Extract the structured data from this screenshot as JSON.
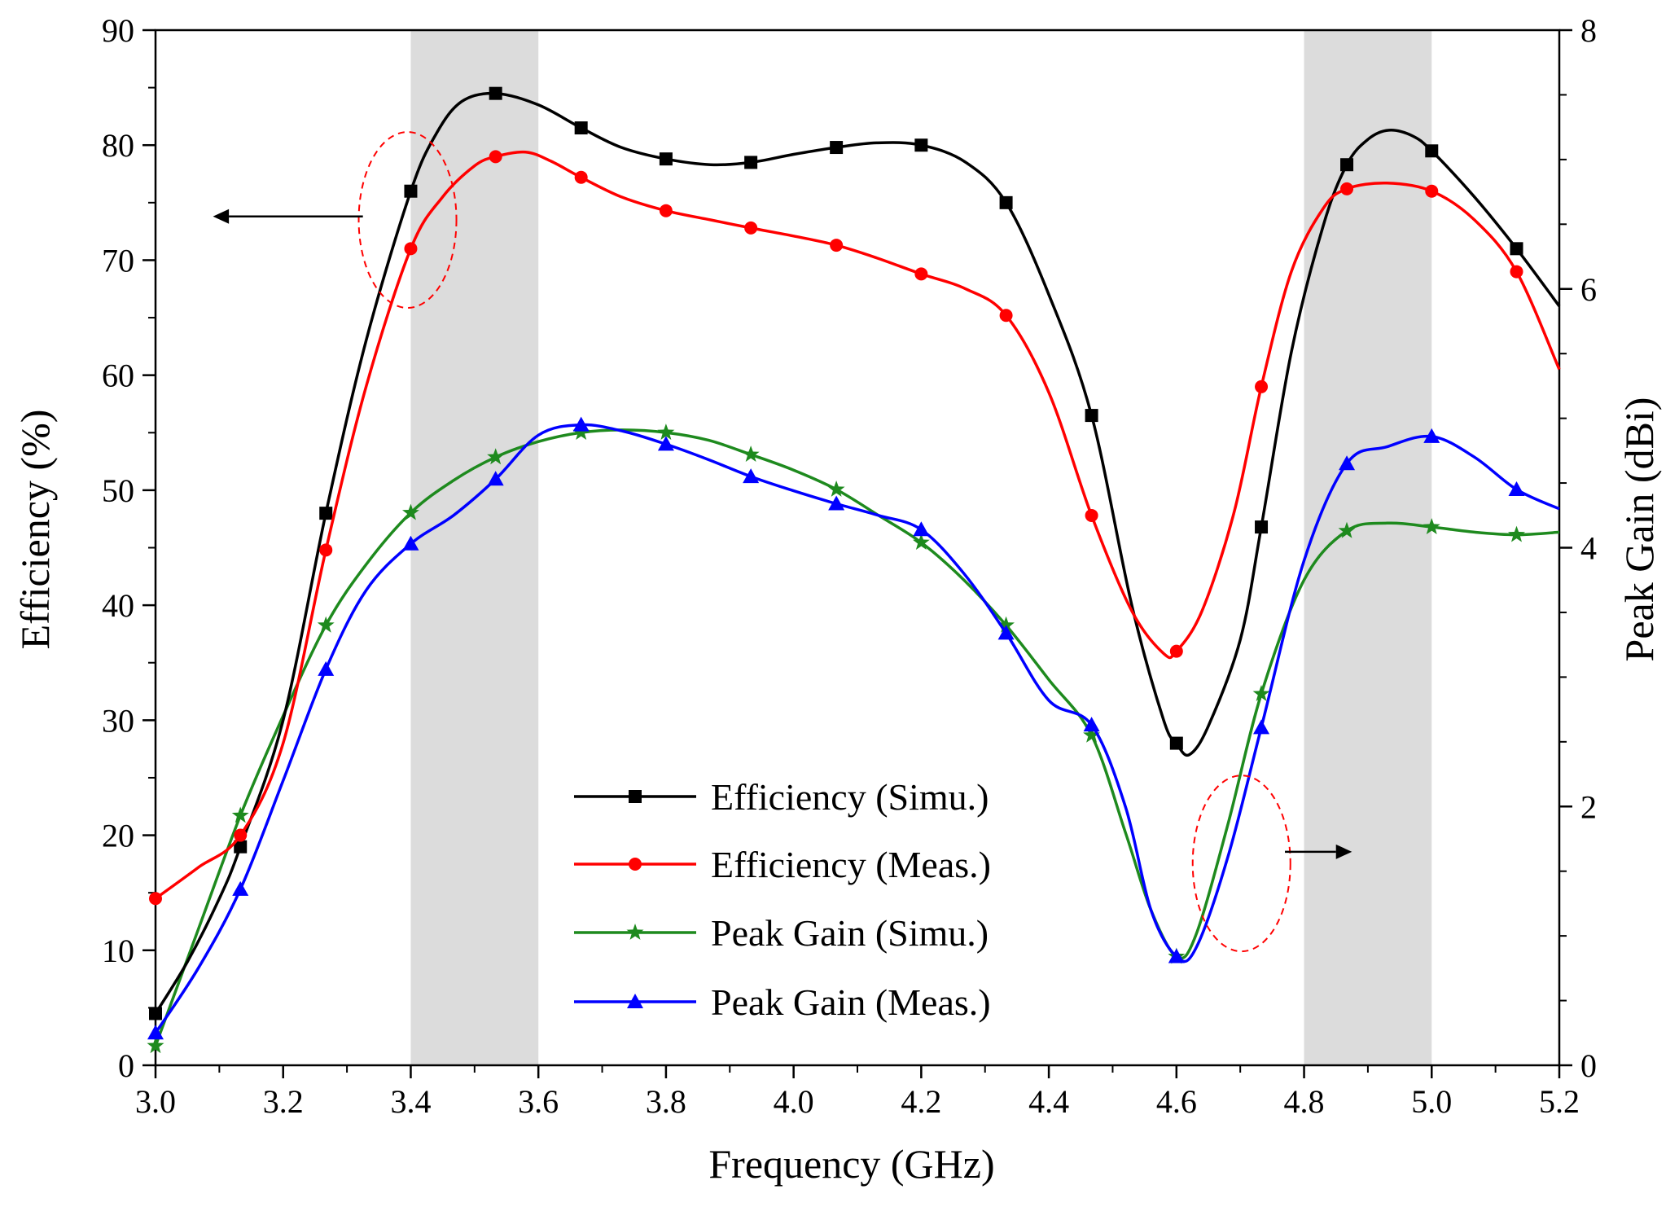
{
  "chart_data": {
    "type": "line",
    "xlabel": "Frequency (GHz)",
    "ylabel_left": "Efficiency (%)",
    "ylabel_right": "Peak Gain (dBi)",
    "xlim": [
      3.0,
      5.2
    ],
    "ylim_left": [
      0,
      90
    ],
    "ylim_right": [
      0,
      8
    ],
    "x_ticks": [
      "3.0",
      "3.2",
      "3.4",
      "3.6",
      "3.8",
      "4.0",
      "4.2",
      "4.4",
      "4.6",
      "4.8",
      "5.0",
      "5.2"
    ],
    "y_left_ticks": [
      "0",
      "10",
      "20",
      "30",
      "40",
      "50",
      "60",
      "70",
      "80",
      "90"
    ],
    "y_right_ticks": [
      "0",
      "2",
      "4",
      "6",
      "8"
    ],
    "grid": false,
    "legend_position": "lower-center",
    "shaded_bands": [
      [
        3.4,
        3.6
      ],
      [
        4.8,
        5.0
      ]
    ],
    "shade_color": "#dcdcdc",
    "series": [
      {
        "name": "Efficiency (Simu.)",
        "axis": "left",
        "color": "#000000",
        "marker": "square",
        "x": [
          3.0,
          3.133,
          3.267,
          3.4,
          3.533,
          3.667,
          3.8,
          3.933,
          4.067,
          4.2,
          4.333,
          4.467,
          4.6,
          4.733,
          4.867,
          5.0,
          5.133
        ],
        "y": [
          4.5,
          19,
          48,
          76,
          84.5,
          81.5,
          78.8,
          78.5,
          79.8,
          80,
          75,
          56.5,
          28,
          46.8,
          78.3,
          79.5,
          71
        ],
        "curve": [
          [
            3.0,
            4.5
          ],
          [
            3.05,
            9
          ],
          [
            3.1,
            14.5
          ],
          [
            3.133,
            19
          ],
          [
            3.2,
            30
          ],
          [
            3.267,
            48
          ],
          [
            3.33,
            63
          ],
          [
            3.4,
            76
          ],
          [
            3.44,
            81
          ],
          [
            3.48,
            83.8
          ],
          [
            3.533,
            84.5
          ],
          [
            3.6,
            83.5
          ],
          [
            3.667,
            81.5
          ],
          [
            3.73,
            79.8
          ],
          [
            3.8,
            78.8
          ],
          [
            3.87,
            78.3
          ],
          [
            3.933,
            78.5
          ],
          [
            4.0,
            79.2
          ],
          [
            4.067,
            79.8
          ],
          [
            4.13,
            80.2
          ],
          [
            4.2,
            80
          ],
          [
            4.27,
            78.5
          ],
          [
            4.333,
            75
          ],
          [
            4.4,
            67
          ],
          [
            4.467,
            56.5
          ],
          [
            4.53,
            40
          ],
          [
            4.58,
            30
          ],
          [
            4.6,
            28
          ],
          [
            4.62,
            27
          ],
          [
            4.65,
            29.5
          ],
          [
            4.7,
            37
          ],
          [
            4.733,
            46.8
          ],
          [
            4.78,
            62
          ],
          [
            4.83,
            73
          ],
          [
            4.867,
            78.3
          ],
          [
            4.9,
            80.5
          ],
          [
            4.933,
            81.3
          ],
          [
            4.97,
            80.8
          ],
          [
            5.0,
            79.5
          ],
          [
            5.067,
            75.5
          ],
          [
            5.133,
            71
          ],
          [
            5.2,
            66
          ]
        ]
      },
      {
        "name": "Efficiency (Meas.)",
        "axis": "left",
        "color": "#ff0000",
        "marker": "circle",
        "x": [
          3.0,
          3.133,
          3.267,
          3.4,
          3.533,
          3.667,
          3.8,
          3.933,
          4.067,
          4.2,
          4.333,
          4.467,
          4.6,
          4.733,
          4.867,
          5.0,
          5.133
        ],
        "y": [
          14.5,
          20,
          44.8,
          71,
          79,
          77.2,
          74.3,
          72.8,
          71.3,
          68.8,
          65.2,
          47.8,
          36,
          59,
          76.2,
          76,
          69
        ],
        "curve": [
          [
            3.0,
            14.5
          ],
          [
            3.067,
            17.2
          ],
          [
            3.133,
            20
          ],
          [
            3.2,
            28
          ],
          [
            3.267,
            44.8
          ],
          [
            3.33,
            59
          ],
          [
            3.4,
            71
          ],
          [
            3.45,
            75.5
          ],
          [
            3.5,
            78.2
          ],
          [
            3.533,
            79
          ],
          [
            3.58,
            79.4
          ],
          [
            3.62,
            78.6
          ],
          [
            3.667,
            77.2
          ],
          [
            3.73,
            75.5
          ],
          [
            3.8,
            74.3
          ],
          [
            3.87,
            73.5
          ],
          [
            3.933,
            72.8
          ],
          [
            4.0,
            72.1
          ],
          [
            4.067,
            71.3
          ],
          [
            4.13,
            70.2
          ],
          [
            4.2,
            68.8
          ],
          [
            4.27,
            67.5
          ],
          [
            4.333,
            65.2
          ],
          [
            4.4,
            58.5
          ],
          [
            4.467,
            47.8
          ],
          [
            4.53,
            39.5
          ],
          [
            4.58,
            35.8
          ],
          [
            4.6,
            36
          ],
          [
            4.64,
            39.5
          ],
          [
            4.69,
            48
          ],
          [
            4.733,
            59
          ],
          [
            4.78,
            69
          ],
          [
            4.83,
            74.5
          ],
          [
            4.867,
            76.2
          ],
          [
            4.93,
            76.7
          ],
          [
            5.0,
            76
          ],
          [
            5.067,
            73.5
          ],
          [
            5.133,
            69
          ],
          [
            5.2,
            60.5
          ]
        ]
      },
      {
        "name": "Peak Gain (Simu.)",
        "axis": "right",
        "color": "#1e8a1e",
        "marker": "star",
        "x": [
          3.0,
          3.133,
          3.267,
          3.4,
          3.533,
          3.667,
          3.8,
          3.933,
          4.067,
          4.2,
          4.333,
          4.467,
          4.6,
          4.733,
          4.867,
          5.0,
          5.133
        ],
        "y": [
          0.15,
          1.93,
          3.4,
          4.27,
          4.7,
          4.89,
          4.89,
          4.72,
          4.45,
          4.04,
          3.4,
          2.55,
          0.84,
          2.87,
          4.13,
          4.16,
          4.1
        ],
        "curve": [
          [
            3.0,
            0.15
          ],
          [
            3.067,
            1.05
          ],
          [
            3.133,
            1.93
          ],
          [
            3.2,
            2.7
          ],
          [
            3.267,
            3.4
          ],
          [
            3.33,
            3.87
          ],
          [
            3.4,
            4.27
          ],
          [
            3.467,
            4.52
          ],
          [
            3.533,
            4.7
          ],
          [
            3.6,
            4.82
          ],
          [
            3.667,
            4.89
          ],
          [
            3.733,
            4.91
          ],
          [
            3.8,
            4.89
          ],
          [
            3.867,
            4.83
          ],
          [
            3.933,
            4.72
          ],
          [
            4.0,
            4.6
          ],
          [
            4.067,
            4.45
          ],
          [
            4.133,
            4.25
          ],
          [
            4.2,
            4.04
          ],
          [
            4.267,
            3.75
          ],
          [
            4.333,
            3.4
          ],
          [
            4.4,
            2.98
          ],
          [
            4.467,
            2.55
          ],
          [
            4.52,
            1.8
          ],
          [
            4.56,
            1.2
          ],
          [
            4.6,
            0.84
          ],
          [
            4.63,
            1.0
          ],
          [
            4.68,
            1.85
          ],
          [
            4.733,
            2.87
          ],
          [
            4.8,
            3.75
          ],
          [
            4.867,
            4.13
          ],
          [
            4.93,
            4.19
          ],
          [
            5.0,
            4.16
          ],
          [
            5.067,
            4.12
          ],
          [
            5.133,
            4.1
          ],
          [
            5.2,
            4.12
          ]
        ]
      },
      {
        "name": "Peak Gain (Meas.)",
        "axis": "right",
        "color": "#0000ff",
        "marker": "triangle",
        "x": [
          3.0,
          3.133,
          3.267,
          3.4,
          3.533,
          3.667,
          3.8,
          3.933,
          4.067,
          4.2,
          4.333,
          4.467,
          4.6,
          4.733,
          4.867,
          5.0,
          5.133
        ],
        "y": [
          0.25,
          1.36,
          3.06,
          4.03,
          4.53,
          4.95,
          4.8,
          4.55,
          4.34,
          4.14,
          3.34,
          2.63,
          0.84,
          2.61,
          4.65,
          4.86,
          4.45
        ],
        "curve": [
          [
            3.0,
            0.25
          ],
          [
            3.067,
            0.75
          ],
          [
            3.133,
            1.36
          ],
          [
            3.2,
            2.2
          ],
          [
            3.267,
            3.06
          ],
          [
            3.33,
            3.67
          ],
          [
            3.4,
            4.03
          ],
          [
            3.467,
            4.25
          ],
          [
            3.533,
            4.53
          ],
          [
            3.6,
            4.87
          ],
          [
            3.667,
            4.95
          ],
          [
            3.733,
            4.9
          ],
          [
            3.8,
            4.8
          ],
          [
            3.867,
            4.68
          ],
          [
            3.933,
            4.55
          ],
          [
            4.0,
            4.44
          ],
          [
            4.067,
            4.34
          ],
          [
            4.133,
            4.25
          ],
          [
            4.2,
            4.14
          ],
          [
            4.267,
            3.8
          ],
          [
            4.333,
            3.34
          ],
          [
            4.4,
            2.82
          ],
          [
            4.467,
            2.63
          ],
          [
            4.52,
            2.0
          ],
          [
            4.56,
            1.2
          ],
          [
            4.6,
            0.84
          ],
          [
            4.63,
            0.9
          ],
          [
            4.68,
            1.6
          ],
          [
            4.733,
            2.61
          ],
          [
            4.8,
            3.9
          ],
          [
            4.867,
            4.65
          ],
          [
            4.93,
            4.78
          ],
          [
            5.0,
            4.86
          ],
          [
            5.067,
            4.7
          ],
          [
            5.133,
            4.45
          ],
          [
            5.2,
            4.3
          ]
        ]
      }
    ]
  }
}
